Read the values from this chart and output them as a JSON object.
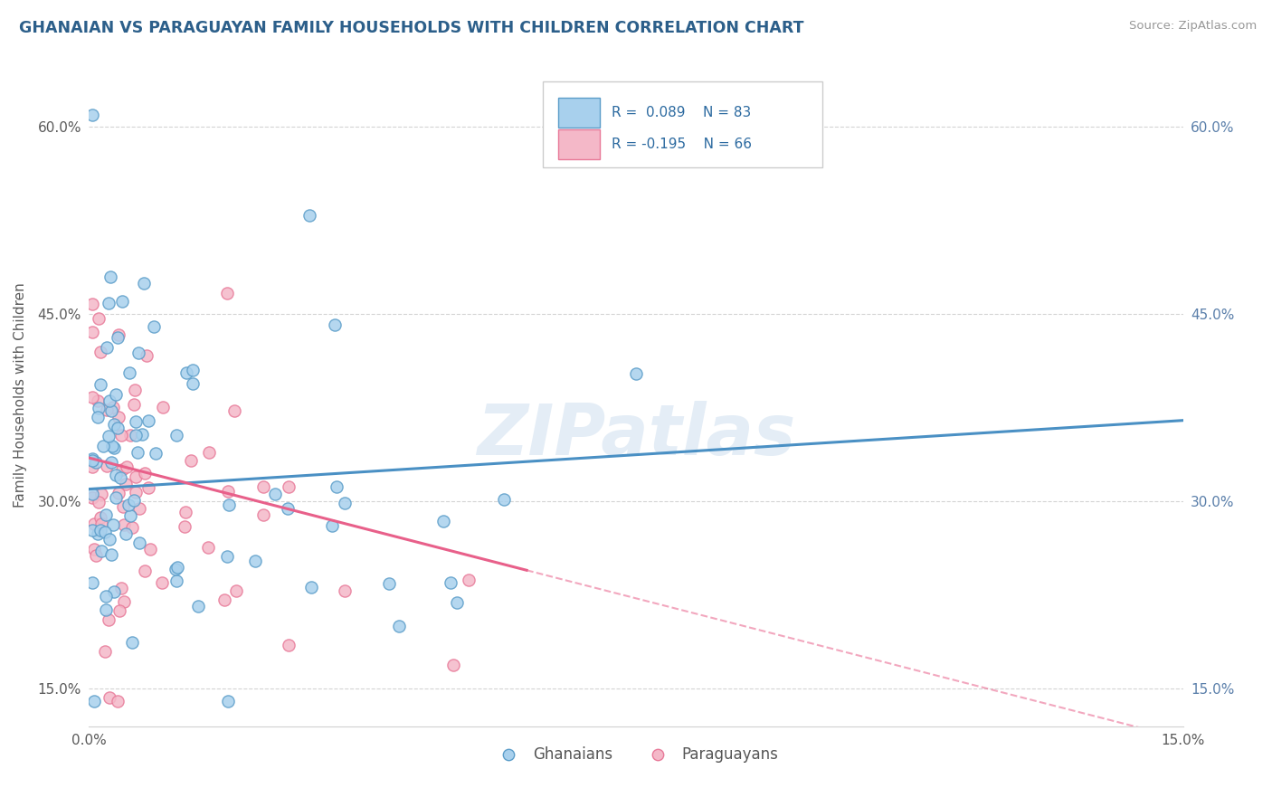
{
  "title": "GHANAIAN VS PARAGUAYAN FAMILY HOUSEHOLDS WITH CHILDREN CORRELATION CHART",
  "source": "Source: ZipAtlas.com",
  "ylabel": "Family Households with Children",
  "xlim": [
    0.0,
    15.0
  ],
  "ylim": [
    12.0,
    65.0
  ],
  "yticks": [
    15.0,
    30.0,
    45.0,
    60.0
  ],
  "ytick_labels": [
    "15.0%",
    "30.0%",
    "45.0%",
    "60.0%"
  ],
  "xtick_labels": [
    "0.0%",
    "15.0%"
  ],
  "legend_r1": "0.089",
  "legend_n1": "83",
  "legend_r2": "-0.195",
  "legend_n2": "66",
  "color_ghanaian_fill": "#a8d0ed",
  "color_ghanaian_edge": "#5b9dc9",
  "color_paraguayan_fill": "#f4b8c8",
  "color_paraguayan_edge": "#e87a99",
  "color_ghanaian_line": "#4a90c4",
  "color_paraguayan_line": "#e8608a",
  "watermark": "ZIPatlas",
  "background_color": "#ffffff",
  "grid_color": "#d0d0d0",
  "legend_label1": "Ghanaians",
  "legend_label2": "Paraguayans",
  "blue_line_y0": 31.0,
  "blue_line_y1": 36.5,
  "pink_line_y0": 33.5,
  "pink_line_y1_at6": 24.5,
  "pink_solid_xmax": 6.0
}
